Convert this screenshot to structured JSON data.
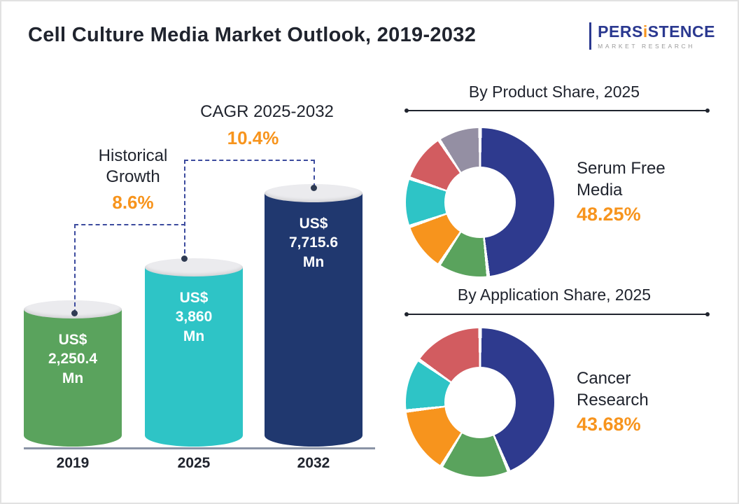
{
  "title": "Cell Culture Media Market Outlook, 2019-2032",
  "logo": {
    "text_pre": "PERS",
    "text_i": "i",
    "text_post": "STENCE",
    "tagline": "MARKET RESEARCH"
  },
  "accent_color": "#f7941d",
  "chart_data": [
    {
      "type": "bar",
      "title": "Cell Culture Media Market Outlook, 2019-2032",
      "categories": [
        "2019",
        "2025",
        "2032"
      ],
      "values": [
        2250.4,
        3860,
        7715.6
      ],
      "unit": "US$ Mn",
      "value_labels": [
        [
          "US$",
          "2,250.4",
          "Mn"
        ],
        [
          "US$",
          "3,860",
          "Mn"
        ],
        [
          "US$",
          "7,715.6",
          "Mn"
        ]
      ],
      "bar_colors": [
        "#5aa35d",
        "#2ec4c6",
        "#20386f"
      ],
      "xlabel": "",
      "ylabel": "",
      "grid": false,
      "annotations": [
        {
          "label_lines": [
            "Historical",
            "Growth"
          ],
          "value": "8.6%",
          "from": "2019",
          "to": "2025"
        },
        {
          "label_lines": [
            "CAGR 2025-2032"
          ],
          "value": "10.4%",
          "from": "2025",
          "to": "2032"
        }
      ]
    },
    {
      "type": "pie",
      "title": "By Product Share, 2025",
      "hole": 0.48,
      "legend_position": "none",
      "highlight": {
        "label": "Serum Free Media",
        "value": "48.25%"
      },
      "segments": [
        {
          "label": "Serum Free Media",
          "value": 48.25,
          "color": "#2e3a8e"
        },
        {
          "label": "unlabeled-green",
          "value": 11.0,
          "color": "#5aa35d"
        },
        {
          "label": "unlabeled-orange",
          "value": 10.5,
          "color": "#f7941d"
        },
        {
          "label": "unlabeled-teal",
          "value": 10.5,
          "color": "#2ec4c6"
        },
        {
          "label": "unlabeled-red",
          "value": 10.5,
          "color": "#d25c60"
        },
        {
          "label": "unlabeled-gray",
          "value": 9.25,
          "color": "#948fa3"
        }
      ]
    },
    {
      "type": "pie",
      "title": "By Application Share, 2025",
      "hole": 0.48,
      "legend_position": "none",
      "highlight": {
        "label": "Cancer Research",
        "value": "43.68%"
      },
      "segments": [
        {
          "label": "Cancer Research",
          "value": 43.68,
          "color": "#2e3a8e"
        },
        {
          "label": "unlabeled-green",
          "value": 15.0,
          "color": "#5aa35d"
        },
        {
          "label": "unlabeled-orange",
          "value": 14.5,
          "color": "#f7941d"
        },
        {
          "label": "unlabeled-teal",
          "value": 11.5,
          "color": "#2ec4c6"
        },
        {
          "label": "unlabeled-red",
          "value": 15.32,
          "color": "#d25c60"
        }
      ]
    }
  ]
}
